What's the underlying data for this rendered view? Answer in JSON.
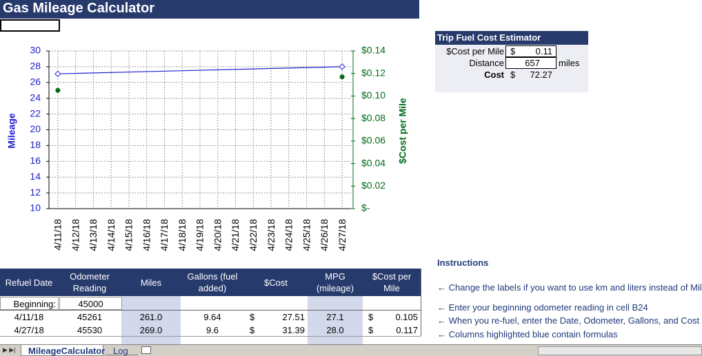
{
  "header": {
    "title": "Gas Mileage Calculator"
  },
  "chart_data": {
    "type": "line",
    "categories": [
      "4/11/18",
      "4/12/18",
      "4/13/18",
      "4/14/18",
      "4/15/18",
      "4/16/18",
      "4/17/18",
      "4/18/18",
      "4/19/18",
      "4/20/18",
      "4/21/18",
      "4/22/18",
      "4/23/18",
      "4/24/18",
      "4/25/18",
      "4/26/18",
      "4/27/18"
    ],
    "ylabel": "Mileage",
    "y2label": "$Cost per Mile",
    "ylim": [
      10,
      30
    ],
    "yticks": [
      10,
      12,
      14,
      16,
      18,
      20,
      22,
      24,
      26,
      28,
      30
    ],
    "y2lim": [
      0,
      0.14
    ],
    "y2ticks": [
      {
        "value": 0,
        "label": "$-"
      },
      {
        "value": 0.02,
        "label": "$0.02"
      },
      {
        "value": 0.04,
        "label": "$0.04"
      },
      {
        "value": 0.06,
        "label": "$0.06"
      },
      {
        "value": 0.08,
        "label": "$0.08"
      },
      {
        "value": 0.1,
        "label": "$0.10"
      },
      {
        "value": 0.12,
        "label": "$0.12"
      },
      {
        "value": 0.14,
        "label": "$0.14"
      }
    ],
    "grid": true,
    "series": [
      {
        "color": "#2020d0",
        "marker": "diamond",
        "x": [
          "4/11/18",
          "4/27/18"
        ],
        "values": [
          27.1,
          28.0
        ]
      },
      {
        "color": "#006b1a",
        "marker": "circle",
        "line": false,
        "axis": "y2",
        "x": [
          "4/11/18",
          "4/27/18"
        ],
        "values": [
          0.105,
          0.117
        ]
      }
    ]
  },
  "estimator": {
    "title": "Trip Fuel Cost Estimator",
    "rows": [
      {
        "label": "$Cost per Mile",
        "currency": "$",
        "value": "0.11"
      },
      {
        "label": "Distance",
        "value": "657",
        "unit": "miles"
      },
      {
        "label": "Cost",
        "currency": "$",
        "value": "72.27"
      }
    ]
  },
  "table": {
    "headers": [
      "Refuel Date",
      "Odometer Reading",
      "Miles",
      "Gallons (fuel added)",
      "$Cost",
      "MPG (mileage)",
      "$Cost per Mile"
    ],
    "beginning": {
      "label": "Beginning:",
      "value": "45000"
    },
    "rows": [
      [
        "4/11/18",
        "45261",
        "261.0",
        "9.64",
        "$",
        "27.51",
        "27.1",
        "$",
        "0.105"
      ],
      [
        "4/27/18",
        "45530",
        "269.0",
        "9.6",
        "$",
        "31.39",
        "28.0",
        "$",
        "0.117"
      ]
    ]
  },
  "instructions": {
    "title": "Instructions",
    "items": [
      "← Change the labels if you want to use km and liters instead of Mil",
      "← Enter your beginning odometer reading in cell B24",
      "← When you re-fuel, enter the Date, Odometer, Gallons, and Cost",
      "← Columns highlighted blue contain formulas"
    ]
  },
  "tabs": [
    "MileageCalculator",
    "Log"
  ]
}
